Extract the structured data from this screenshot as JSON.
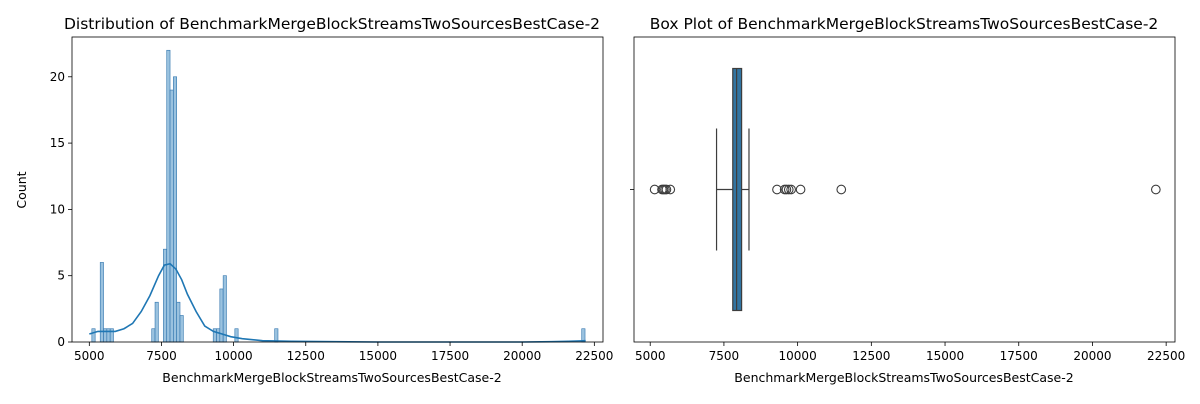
{
  "chart_data": [
    {
      "type": "histogram",
      "title": "Distribution of BenchmarkMergeBlockStreamsTwoSourcesBestCase-2",
      "xlabel": "BenchmarkMergeBlockStreamsTwoSourcesBestCase-2",
      "ylabel": "Count",
      "xlim": [
        4400,
        22800
      ],
      "ylim": [
        0,
        23
      ],
      "xticks": [
        5000,
        7500,
        10000,
        12500,
        15000,
        17500,
        20000,
        22500
      ],
      "xtick_labels": [
        "5000",
        "7500",
        "10000",
        "12500",
        "15000",
        "17500",
        "20000",
        "22500"
      ],
      "yticks": [
        0,
        5,
        10,
        15,
        20
      ],
      "ytick_labels": [
        "0",
        "5",
        "10",
        "15",
        "20"
      ],
      "bin_width": 115,
      "bins": [
        {
          "x": 5145,
          "count": 1
        },
        {
          "x": 5435,
          "count": 6
        },
        {
          "x": 5550,
          "count": 1
        },
        {
          "x": 5665,
          "count": 1
        },
        {
          "x": 5780,
          "count": 1
        },
        {
          "x": 7220,
          "count": 1
        },
        {
          "x": 7335,
          "count": 3
        },
        {
          "x": 7625,
          "count": 7
        },
        {
          "x": 7740,
          "count": 22
        },
        {
          "x": 7855,
          "count": 19
        },
        {
          "x": 7970,
          "count": 20
        },
        {
          "x": 8085,
          "count": 3
        },
        {
          "x": 8200,
          "count": 2
        },
        {
          "x": 9350,
          "count": 1
        },
        {
          "x": 9465,
          "count": 1
        },
        {
          "x": 9580,
          "count": 4
        },
        {
          "x": 9695,
          "count": 5
        },
        {
          "x": 10100,
          "count": 1
        },
        {
          "x": 11480,
          "count": 1
        },
        {
          "x": 22120,
          "count": 1
        }
      ],
      "kde": {
        "x": [
          5000,
          5300,
          5600,
          5900,
          6200,
          6500,
          6800,
          7100,
          7400,
          7600,
          7800,
          8000,
          8200,
          8400,
          8700,
          9000,
          9300,
          9600,
          9900,
          10300,
          11000,
          12000,
          13500,
          15000,
          17500,
          20000,
          21000,
          21600,
          22000,
          22200
        ],
        "y": [
          0.6,
          0.8,
          0.8,
          0.8,
          1.0,
          1.4,
          2.3,
          3.5,
          5.0,
          5.8,
          5.9,
          5.5,
          4.7,
          3.6,
          2.3,
          1.2,
          0.8,
          0.6,
          0.4,
          0.25,
          0.1,
          0.05,
          0.02,
          0.0,
          0.0,
          0.0,
          0.02,
          0.05,
          0.08,
          0.1
        ]
      },
      "colors": {
        "bar_fill": "#9ac2df",
        "bar_edge": "#2f74ad",
        "kde": "#1f77b4"
      }
    },
    {
      "type": "box",
      "title": "Box Plot of BenchmarkMergeBlockStreamsTwoSourcesBestCase-2",
      "xlabel": "BenchmarkMergeBlockStreamsTwoSourcesBestCase-2",
      "xlim": [
        4450,
        22800
      ],
      "xticks": [
        5000,
        7500,
        10000,
        12500,
        15000,
        17500,
        20000,
        22500
      ],
      "xtick_labels": [
        "5000",
        "7500",
        "10000",
        "12500",
        "15000",
        "17500",
        "20000",
        "22500"
      ],
      "q1": 7800,
      "median": 7930,
      "q3": 8100,
      "whisker_low": 7250,
      "whisker_high": 8350,
      "outliers": [
        5150,
        5400,
        5450,
        5500,
        5550,
        5680,
        9300,
        9560,
        9620,
        9700,
        9780,
        10100,
        11480,
        22150
      ],
      "colors": {
        "box_fill": "#3274a1",
        "line": "#3d3d3d"
      }
    }
  ]
}
